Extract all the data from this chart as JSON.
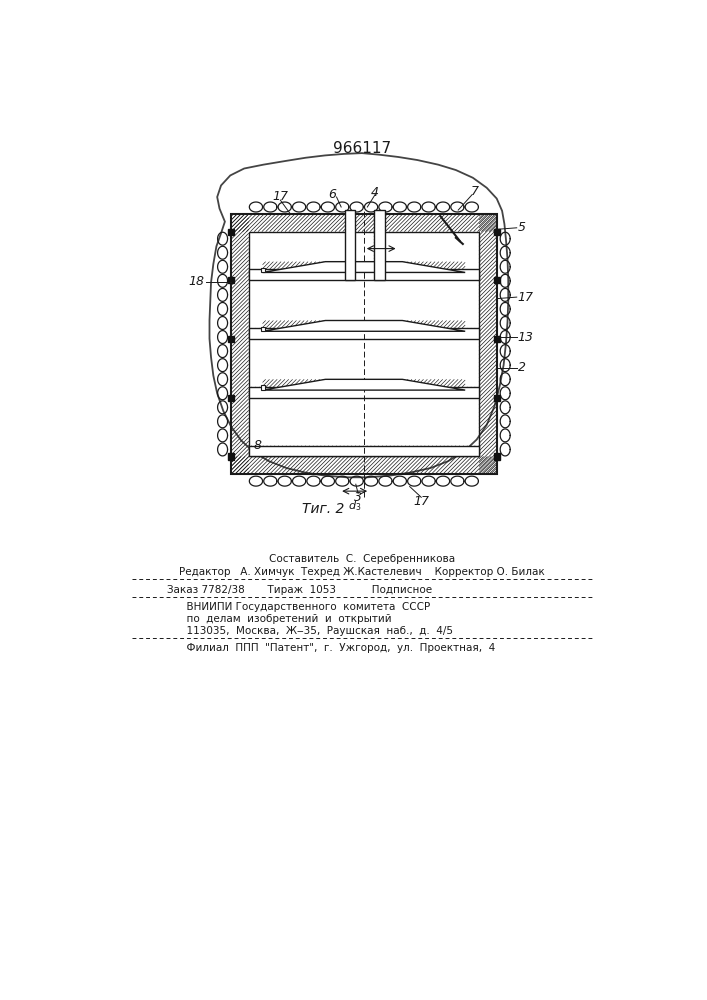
{
  "title": "966117",
  "fig_label": "Τиг. 2",
  "bg_color": "#ffffff",
  "line_color": "#1a1a1a",
  "title_fontsize": 11,
  "label_fontsize": 9,
  "footnote_line1": "Составитель  С.  Серебренникова",
  "footnote_line2": "Редактор   А. Химчук  Техред Ж.Кастелевич    Корректор О. Билак",
  "footnote_line3": "Заказ 7782/38       Тираж  1053           Подписное",
  "footnote_line4": "      ВНИИПИ Государственного  комитета  СССР",
  "footnote_line5": "      по  делам  изобретений  и  открытий",
  "footnote_line6": "      113035,  Москва,  Ж‒35,  Раушская  наб.,  д.  4/5",
  "footnote_line7": "      Филиал  ППП  \"Патент\",  г.  Ужгород,  ул.  Проектная,  4"
}
